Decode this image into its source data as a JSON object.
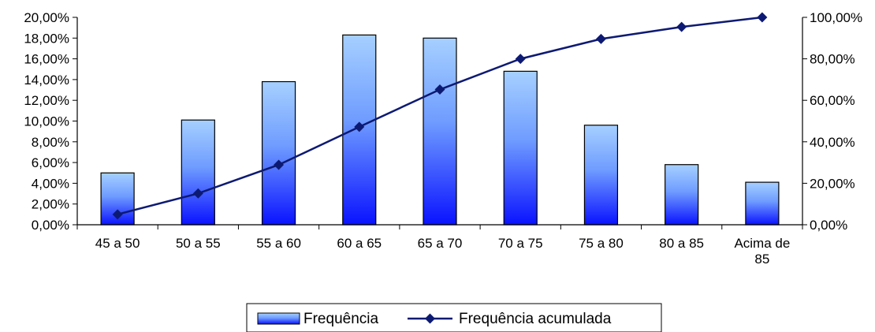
{
  "chart_data": {
    "type": "bar",
    "categories": [
      "45 a 50",
      "50 a 55",
      "55 a 60",
      "60 a 65",
      "65 a 70",
      "70 a 75",
      "75 a 80",
      "80 a 85",
      "Acima de 85"
    ],
    "series": [
      {
        "name": "Frequência",
        "type": "bar",
        "axis": "left",
        "values": [
          5.0,
          10.1,
          13.8,
          18.3,
          18.0,
          14.8,
          9.6,
          5.8,
          4.1
        ]
      },
      {
        "name": "Frequência acumulada",
        "type": "line",
        "axis": "right",
        "values": [
          5.0,
          15.1,
          28.9,
          47.2,
          65.2,
          80.0,
          89.6,
          95.4,
          100.0
        ]
      }
    ],
    "y_left": {
      "range": [
        0,
        20
      ],
      "ticks": [
        0,
        2,
        4,
        6,
        8,
        10,
        12,
        14,
        16,
        18,
        20
      ],
      "tick_labels": [
        "0,00%",
        "2,00%",
        "4,00%",
        "6,00%",
        "8,00%",
        "10,00%",
        "12,00%",
        "14,00%",
        "16,00%",
        "18,00%",
        "20,00%"
      ]
    },
    "y_right": {
      "range": [
        0,
        100
      ],
      "ticks": [
        0,
        20,
        40,
        60,
        80,
        100
      ],
      "tick_labels": [
        "0,00%",
        "20,00%",
        "40,00%",
        "60,00%",
        "80,00%",
        "100,00%"
      ]
    },
    "grid": false,
    "legend": "bottom-center",
    "colors": {
      "bar_top": "#a6d0ff",
      "bar_bottom": "#0a12ff",
      "line": "#0d1a73",
      "axis": "#000000"
    }
  }
}
